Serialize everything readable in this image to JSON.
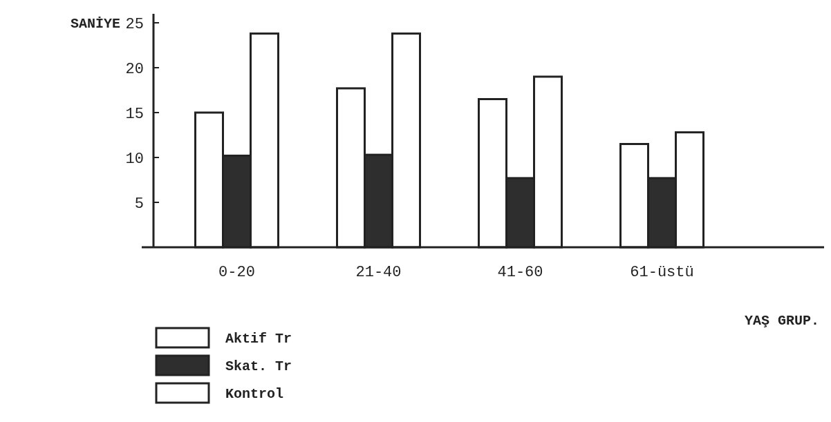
{
  "chart_data": {
    "type": "bar",
    "ylabel": "SANİYE",
    "xlabel": "YAŞ GRUP.",
    "categories": [
      "0-20",
      "21-40",
      "41-60",
      "61-üstü"
    ],
    "series": [
      {
        "name": "Aktif Tr",
        "color": "#ffffff",
        "values": [
          15,
          17.7,
          16.5,
          11.5
        ]
      },
      {
        "name": "Skat. Tr",
        "color": "#2e2e2e",
        "values": [
          10.2,
          10.3,
          7.7,
          7.7
        ]
      },
      {
        "name": "Kontrol",
        "color": "#ffffff",
        "values": [
          23.8,
          23.8,
          19,
          12.8
        ]
      }
    ],
    "ylim": [
      0,
      26
    ],
    "yticks": [
      5,
      10,
      15,
      20,
      25
    ],
    "grid": false,
    "legend": "bottom left"
  }
}
